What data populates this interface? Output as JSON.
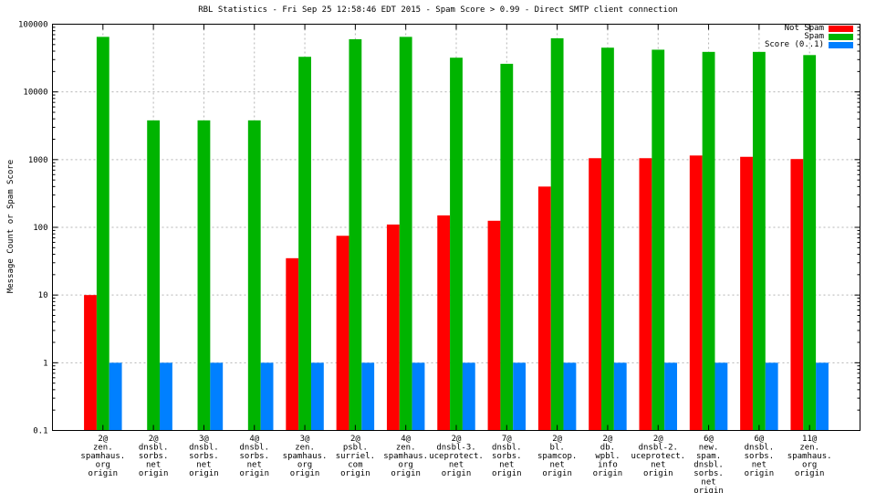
{
  "chart_data": {
    "type": "bar",
    "title": "RBL Statistics - Fri Sep 25 12:58:46 EDT 2015 - Spam Score > 0.99 - Direct SMTP client connection",
    "xlabel": "",
    "ylabel": "Message Count or Spam Score",
    "y_scale": "log",
    "ylim": [
      0.1,
      100000
    ],
    "ytick_values": [
      100000,
      10000,
      1000,
      100,
      10,
      1,
      0.1
    ],
    "ytick_labels": [
      "100000",
      "10000",
      "1000",
      "100",
      "10",
      "1",
      "0.1"
    ],
    "grid": true,
    "legend_position": "top-right-inside",
    "categories": [
      [
        "2@",
        "zen.",
        "spamhaus.",
        "org",
        "origin"
      ],
      [
        "2@",
        "dnsbl.",
        "sorbs.",
        "net",
        "origin"
      ],
      [
        "3@",
        "dnsbl.",
        "sorbs.",
        "net",
        "origin"
      ],
      [
        "4@",
        "dnsbl.",
        "sorbs.",
        "net",
        "origin"
      ],
      [
        "3@",
        "zen.",
        "spamhaus.",
        "org",
        "origin"
      ],
      [
        "2@",
        "psbl.",
        "surriel.",
        "com",
        "origin"
      ],
      [
        "4@",
        "zen.",
        "spamhaus.",
        "org",
        "origin"
      ],
      [
        "2@",
        "dnsbl-3.",
        "uceprotect.",
        "net",
        "origin"
      ],
      [
        "7@",
        "dnsbl.",
        "sorbs.",
        "net",
        "origin"
      ],
      [
        "2@",
        "bl.",
        "spamcop.",
        "net",
        "origin"
      ],
      [
        "2@",
        "db.",
        "wpbl.",
        "info",
        "origin"
      ],
      [
        "2@",
        "dnsbl-2.",
        "uceprotect.",
        "net",
        "origin"
      ],
      [
        "6@",
        "new.",
        "spam.",
        "dnsbl.",
        "sorbs.",
        "net",
        "origin"
      ],
      [
        "6@",
        "dnsbl.",
        "sorbs.",
        "net",
        "origin"
      ],
      [
        "11@",
        "zen.",
        "spamhaus.",
        "org",
        "origin"
      ]
    ],
    "series": [
      {
        "name": "Not Spam",
        "color": "#ff0000",
        "values": [
          10,
          0,
          0,
          0,
          35,
          75,
          110,
          150,
          125,
          400,
          1050,
          1050,
          1150,
          1100,
          1020
        ]
      },
      {
        "name": "Spam",
        "color": "#00b400",
        "values": [
          65000,
          3800,
          3800,
          3800,
          33000,
          60000,
          65000,
          32000,
          26000,
          62000,
          45000,
          42000,
          39000,
          39000,
          35000
        ]
      },
      {
        "name": "Score (0..1)",
        "color": "#0080ff",
        "values": [
          1,
          1,
          1,
          1,
          1,
          1,
          1,
          1,
          1,
          1,
          1,
          1,
          1,
          1,
          1
        ]
      }
    ],
    "grid_color": "#b4b4b4",
    "axis_color": "#000000"
  }
}
